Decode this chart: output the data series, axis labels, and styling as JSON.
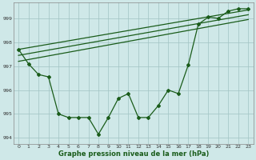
{
  "xlabel": "Graphe pression niveau de la mer (hPa)",
  "bg_color": "#cfe8e8",
  "grid_color": "#a0c4c4",
  "line_color": "#1a5c1a",
  "x_values": [
    0,
    1,
    2,
    3,
    4,
    5,
    6,
    7,
    8,
    9,
    10,
    11,
    12,
    13,
    14,
    15,
    16,
    17,
    18,
    19,
    20,
    21,
    22,
    23
  ],
  "y_main": [
    997.7,
    997.1,
    996.65,
    996.55,
    995.0,
    994.85,
    994.85,
    994.85,
    994.15,
    994.85,
    995.65,
    995.85,
    994.85,
    994.85,
    995.35,
    996.0,
    995.85,
    997.05,
    998.75,
    999.05,
    999.0,
    999.3,
    999.4,
    999.4
  ],
  "ylim": [
    993.75,
    999.65
  ],
  "yticks": [
    994,
    995,
    996,
    997,
    998,
    999
  ],
  "trend_lines": [
    [
      997.7,
      999.35
    ],
    [
      997.45,
      999.15
    ],
    [
      997.2,
      998.95
    ]
  ],
  "xlim": [
    -0.5,
    23.5
  ]
}
